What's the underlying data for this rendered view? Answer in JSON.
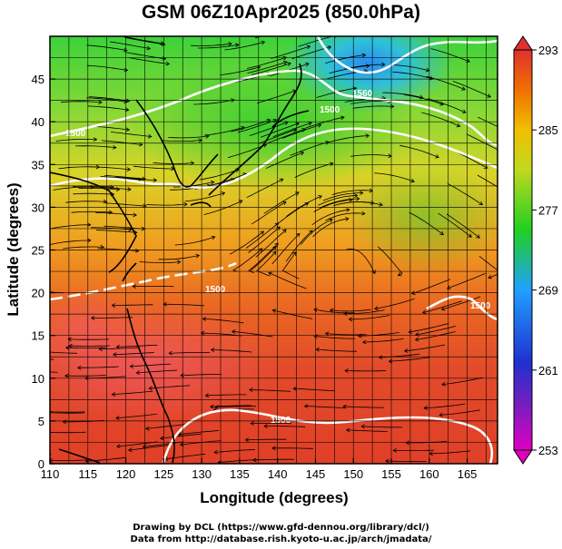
{
  "title": "GSM 06Z10Apr2025 (850.0hPa)",
  "x_axis": {
    "label": "Longitude (degrees)",
    "ticks": [
      "110",
      "115",
      "120",
      "125",
      "130",
      "135",
      "140",
      "145",
      "150",
      "155",
      "160",
      "165"
    ]
  },
  "y_axis": {
    "label": "Latitude  (degrees)",
    "ticks": [
      "0",
      "5",
      "10",
      "15",
      "20",
      "25",
      "30",
      "35",
      "40",
      "45"
    ]
  },
  "colorbar": {
    "labels": [
      "253",
      "261",
      "269",
      "277",
      "285",
      "293"
    ],
    "colors": [
      "#e000c0",
      "#3030d0",
      "#20a0ff",
      "#20d020",
      "#f0d000",
      "#f08000",
      "#e04030"
    ]
  },
  "contour_labels": [
    "1560",
    "1500",
    "1500",
    "1500",
    "1500",
    "1500",
    "1500"
  ],
  "credits": [
    "Drawing by DCL (https://www.gfd-dennou.org/library/dcl/)",
    "Data from http://database.rish.kyoto-u.ac.jp/arch/jmadata/"
  ],
  "chart_data": {
    "type": "heatmap",
    "title": "GSM 06Z10Apr2025 (850.0hPa)",
    "xlabel": "Longitude (degrees)",
    "ylabel": "Latitude  (degrees)",
    "xlim": [
      110,
      169
    ],
    "ylim": [
      0,
      50
    ],
    "colorbar_range": [
      253,
      293
    ],
    "colorbar_ticks": [
      253,
      261,
      269,
      277,
      285,
      293
    ],
    "overlays": [
      "streamlines",
      "geopotential height contours (white)",
      "coastlines"
    ],
    "grid": true
  }
}
